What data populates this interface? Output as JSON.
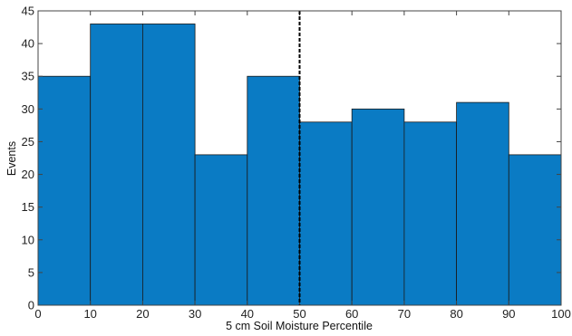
{
  "chart_data": {
    "type": "bar",
    "subtype": "histogram",
    "bin_edges": [
      0,
      10,
      20,
      30,
      40,
      50,
      60,
      70,
      80,
      90,
      100
    ],
    "values": [
      35,
      43,
      43,
      23,
      35,
      28,
      30,
      28,
      31,
      23
    ],
    "xlabel": "5 cm Soil Moisture Percentile",
    "ylabel": "Events",
    "xlim": [
      0,
      100
    ],
    "ylim": [
      0,
      45
    ],
    "xticks": [
      0,
      10,
      20,
      30,
      40,
      50,
      60,
      70,
      80,
      90,
      100
    ],
    "yticks": [
      0,
      5,
      10,
      15,
      20,
      25,
      30,
      35,
      40,
      45
    ],
    "reference_line": {
      "x": 50,
      "style": "dashed",
      "color": "#000000"
    },
    "bar_color": "#0a7bc4",
    "edge_color": "#1a1a1a",
    "grid": false,
    "legend": "none"
  }
}
